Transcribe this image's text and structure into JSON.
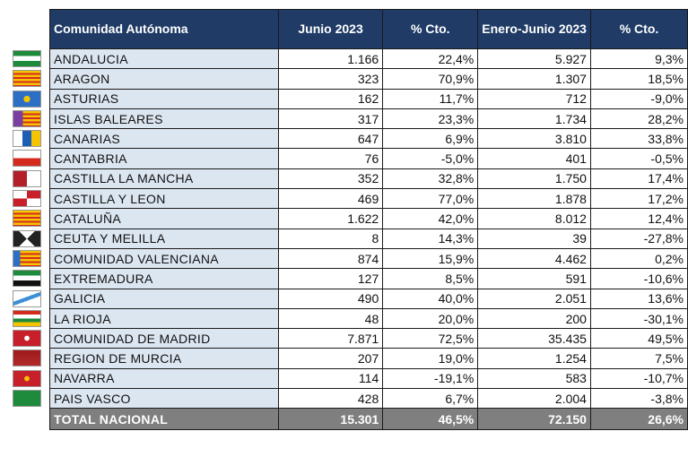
{
  "table": {
    "header": [
      "Comunidad Autónoma",
      "Junio 2023",
      "% Cto.",
      "Enero-Junio 2023",
      "% Cto."
    ],
    "rows": [
      [
        "ANDALUCIA",
        "1.166",
        "22,4%",
        "5.927",
        "9,3%"
      ],
      [
        "ARAGON",
        "323",
        "70,9%",
        "1.307",
        "18,5%"
      ],
      [
        "ASTURIAS",
        "162",
        "11,7%",
        "712",
        "-9,0%"
      ],
      [
        "ISLAS BALEARES",
        "317",
        "23,3%",
        "1.734",
        "28,2%"
      ],
      [
        "CANARIAS",
        "647",
        "6,9%",
        "3.810",
        "33,8%"
      ],
      [
        "CANTABRIA",
        "76",
        "-5,0%",
        "401",
        "-0,5%"
      ],
      [
        "CASTILLA  LA MANCHA",
        "352",
        "32,8%",
        "1.750",
        "17,4%"
      ],
      [
        "CASTILLA Y LEON",
        "469",
        "77,0%",
        "1.878",
        "17,2%"
      ],
      [
        "CATALUÑA",
        "1.622",
        "42,0%",
        "8.012",
        "12,4%"
      ],
      [
        "CEUTA Y MELILLA",
        "8",
        "14,3%",
        "39",
        "-27,8%"
      ],
      [
        "COMUNIDAD VALENCIANA",
        "874",
        "15,9%",
        "4.462",
        "0,2%"
      ],
      [
        "EXTREMADURA",
        "127",
        "8,5%",
        "591",
        "-10,6%"
      ],
      [
        "GALICIA",
        "490",
        "40,0%",
        "2.051",
        "13,6%"
      ],
      [
        "LA RIOJA",
        "48",
        "20,0%",
        "200",
        "-30,1%"
      ],
      [
        "COMUNIDAD DE MADRID",
        "7.871",
        "72,5%",
        "35.435",
        "49,5%"
      ],
      [
        "REGION DE MURCIA",
        "207",
        "19,0%",
        "1.254",
        "7,5%"
      ],
      [
        "NAVARRA",
        "114",
        "-19,1%",
        "583",
        "-10,7%"
      ],
      [
        "PAIS VASCO",
        "428",
        "6,7%",
        "2.004",
        "-3,8%"
      ]
    ],
    "total": [
      "TOTAL NACIONAL",
      "15.301",
      "46,5%",
      "72.150",
      "26,6%"
    ]
  }
}
